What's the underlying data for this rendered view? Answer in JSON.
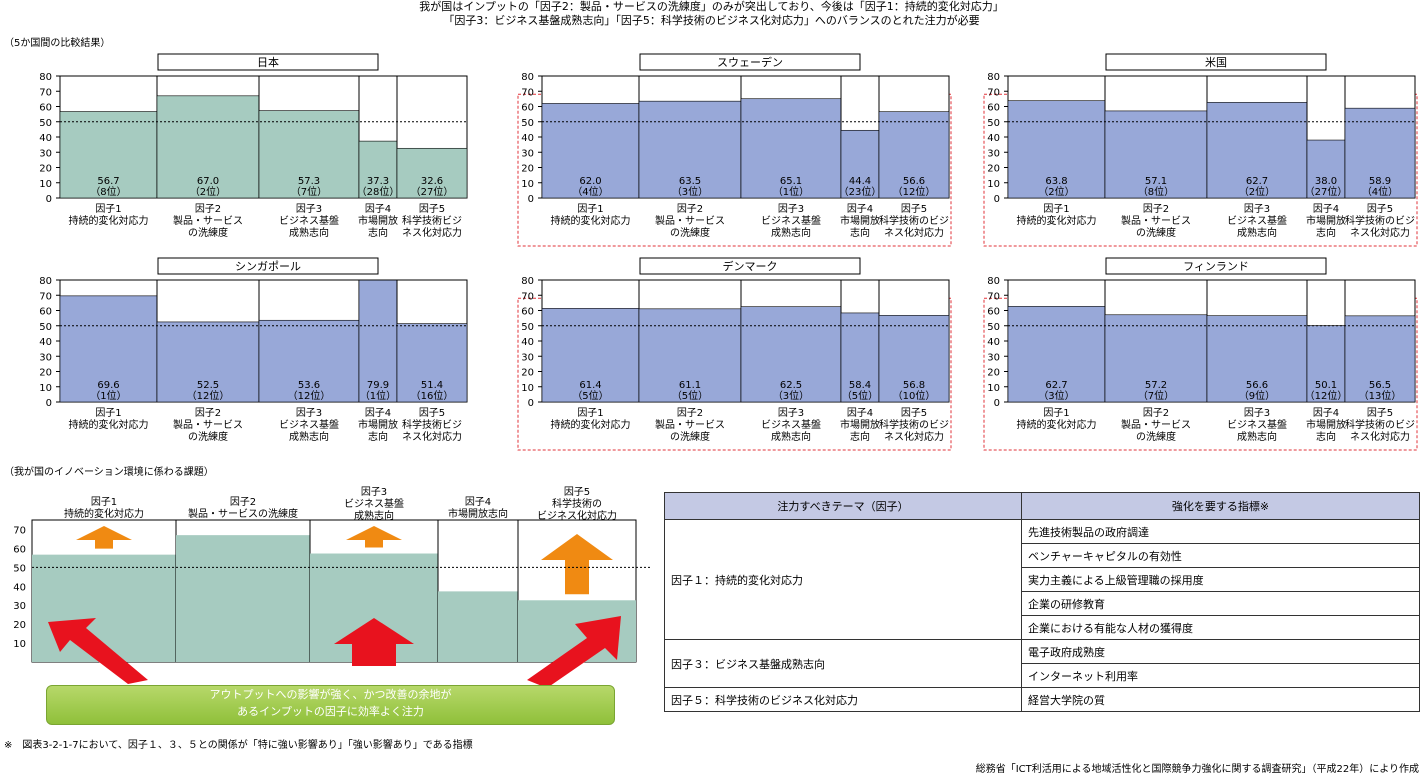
{
  "header": {
    "line1": "我が国はインプットの「因子2：製品・サービスの洗練度」のみが突出しており、今後は「因子1：持続的変化対応力」",
    "line2": "「因子3：ビジネス基盤成熟志向」「因子5：科学技術のビジネス化対応力」へのバランスのとれた注力が必要"
  },
  "section1_label": "（5か国間の比較結果）",
  "section2_label": "（我が国のイノベーション環境に係わる課題）",
  "colors": {
    "japan_fill": "#a6cbc0",
    "other_fill": "#98a8d8",
    "orange": "#f08a12",
    "red": "#e8121e",
    "green": "#9cc744",
    "table_header": "#c4c9e4",
    "dashed": "#e2333a"
  },
  "chart_data": [
    {
      "type": "bar",
      "title": "日本",
      "categories": [
        "因子1\n持続的変化対応力",
        "因子2\n製品・サービス\nの洗練度",
        "因子3\nビジネス基盤\n成熟志向",
        "因子4\n市場開放\n志向",
        "因子5\n科学技術ビジ\nネス化対応力"
      ],
      "values": [
        56.7,
        67.0,
        57.3,
        37.3,
        32.6
      ],
      "value_labels": [
        "56.7",
        "67.0",
        "57.3",
        "37.3",
        "32.6"
      ],
      "ranks": [
        "（8位）",
        "（2位）",
        "（7位）",
        "（28位）",
        "（27位）"
      ],
      "ylim": [
        0,
        80
      ],
      "yticks": [
        0,
        10,
        20,
        30,
        40,
        50,
        60,
        70,
        80
      ],
      "reference_line": 50,
      "dashed_box": false,
      "fill": "japan"
    },
    {
      "type": "bar",
      "title": "スウェーデン",
      "categories": [
        "因子1\n持続的変化対応力",
        "因子2\n製品・サービス\nの洗練度",
        "因子3\nビジネス基盤\n成熟志向",
        "因子4\n市場開放\n志向",
        "因子5\n科学技術のビジ\nネス化対応力"
      ],
      "values": [
        62.0,
        63.5,
        65.1,
        44.4,
        56.6
      ],
      "value_labels": [
        "62.0",
        "63.5",
        "65.1",
        "44.4",
        "56.6"
      ],
      "ranks": [
        "（4位）",
        "（3位）",
        "（1位）",
        "（23位）",
        "（12位）"
      ],
      "ylim": [
        0,
        80
      ],
      "yticks": [
        0,
        10,
        20,
        30,
        40,
        50,
        60,
        70,
        80
      ],
      "reference_line": 50,
      "dashed_box": true,
      "fill": "other"
    },
    {
      "type": "bar",
      "title": "米国",
      "categories": [
        "因子1\n持続的変化対応力",
        "因子2\n製品・サービス\nの洗練度",
        "因子3\nビジネス基盤\n成熟志向",
        "因子4\n市場開放\n志向",
        "因子5\n科学技術のビジ\nネス化対応力"
      ],
      "values": [
        63.8,
        57.1,
        62.7,
        38.0,
        58.9
      ],
      "value_labels": [
        "63.8",
        "57.1",
        "62.7",
        "38.0",
        "58.9"
      ],
      "ranks": [
        "（2位）",
        "（8位）",
        "（2位）",
        "（27位）",
        "（4位）"
      ],
      "ylim": [
        0,
        80
      ],
      "yticks": [
        0,
        10,
        20,
        30,
        40,
        50,
        60,
        70,
        80
      ],
      "reference_line": 50,
      "dashed_box": true,
      "fill": "other"
    },
    {
      "type": "bar",
      "title": "シンガポール",
      "categories": [
        "因子1\n持続的変化対応力",
        "因子2\n製品・サービス\nの洗練度",
        "因子3\nビジネス基盤\n成熟志向",
        "因子4\n市場開放\n志向",
        "因子5\n科学技術ビジ\nネス化対応力"
      ],
      "values": [
        69.6,
        52.5,
        53.6,
        79.9,
        51.4
      ],
      "value_labels": [
        "69.6",
        "52.5",
        "53.6",
        "79.9",
        "51.4"
      ],
      "ranks": [
        "（1位）",
        "（12位）",
        "（12位）",
        "（1位）",
        "（16位）"
      ],
      "ylim": [
        0,
        80
      ],
      "yticks": [
        0,
        10,
        20,
        30,
        40,
        50,
        60,
        70,
        80
      ],
      "reference_line": 50,
      "dashed_box": false,
      "fill": "other"
    },
    {
      "type": "bar",
      "title": "デンマーク",
      "categories": [
        "因子1\n持続的変化対応力",
        "因子2\n製品・サービス\nの洗練度",
        "因子3\nビジネス基盤\n成熟志向",
        "因子4\n市場開放\n志向",
        "因子5\n科学技術のビジ\nネス化対応力"
      ],
      "values": [
        61.4,
        61.1,
        62.5,
        58.4,
        56.8
      ],
      "value_labels": [
        "61.4",
        "61.1",
        "62.5",
        "58.4",
        "56.8"
      ],
      "ranks": [
        "（5位）",
        "（5位）",
        "（3位）",
        "（5位）",
        "（10位）"
      ],
      "ylim": [
        0,
        80
      ],
      "yticks": [
        0,
        10,
        20,
        30,
        40,
        50,
        60,
        70,
        80
      ],
      "reference_line": 50,
      "dashed_box": true,
      "fill": "other"
    },
    {
      "type": "bar",
      "title": "フィンランド",
      "categories": [
        "因子1\n持続的変化対応力",
        "因子2\n製品・サービス\nの洗練度",
        "因子3\nビジネス基盤\n成熟志向",
        "因子4\n市場開放\n志向",
        "因子5\n科学技術のビジ\nネス化対応力"
      ],
      "values": [
        62.7,
        57.2,
        56.6,
        50.1,
        56.5
      ],
      "value_labels": [
        "62.7",
        "57.2",
        "56.6",
        "50.1",
        "56.5"
      ],
      "ranks": [
        "（3位）",
        "（7位）",
        "（9位）",
        "（12位）",
        "（13位）"
      ],
      "ylim": [
        0,
        80
      ],
      "yticks": [
        0,
        10,
        20,
        30,
        40,
        50,
        60,
        70,
        80
      ],
      "reference_line": 50,
      "dashed_box": true,
      "fill": "other"
    }
  ],
  "issue_chart": {
    "categories": [
      "因子1\n持続的変化対応力",
      "因子2\n製品・サービスの洗練度",
      "因子3\nビジネス基盤\n成熟志向",
      "因子4\n市場開放志向",
      "因子5\n科学技術の\nビジネス化対応力"
    ],
    "values": [
      56.7,
      67.0,
      57.3,
      37.3,
      32.6
    ],
    "yticks": [
      10,
      20,
      30,
      40,
      50,
      60,
      70
    ],
    "ylim": [
      0,
      75
    ],
    "reference_line": 50,
    "orange_arrows": [
      0,
      2,
      4
    ],
    "red_arrows": [
      0,
      2,
      4
    ]
  },
  "green_box": {
    "line1": "アウトプットへの影響が強く、かつ改善の余地が",
    "line2": "あるインプットの因子に効率よく注力"
  },
  "table": {
    "headers": [
      "注力すべきテーマ（因子）",
      "強化を要する指標※"
    ],
    "groups": [
      {
        "theme": "因子１：持続的変化対応力",
        "indicators": [
          "先進技術製品の政府調達",
          "ベンチャーキャピタルの有効性",
          "実力主義による上級管理職の採用度",
          "企業の研修教育",
          "企業における有能な人材の獲得度"
        ]
      },
      {
        "theme": "因子３：ビジネス基盤成熟志向",
        "indicators": [
          "電子政府成熟度",
          "インターネット利用率"
        ]
      },
      {
        "theme": "因子５：科学技術のビジネス化対応力",
        "indicators": [
          "経営大学院の質"
        ]
      }
    ]
  },
  "footnote": "※　図表3-2-1-7において、因子１、３、５との関係が「特に強い影響あり」「強い影響あり」である指標",
  "source": "総務省「ICT利活用による地域活性化と国際競争力強化に関する調査研究」（平成22年）により作成"
}
